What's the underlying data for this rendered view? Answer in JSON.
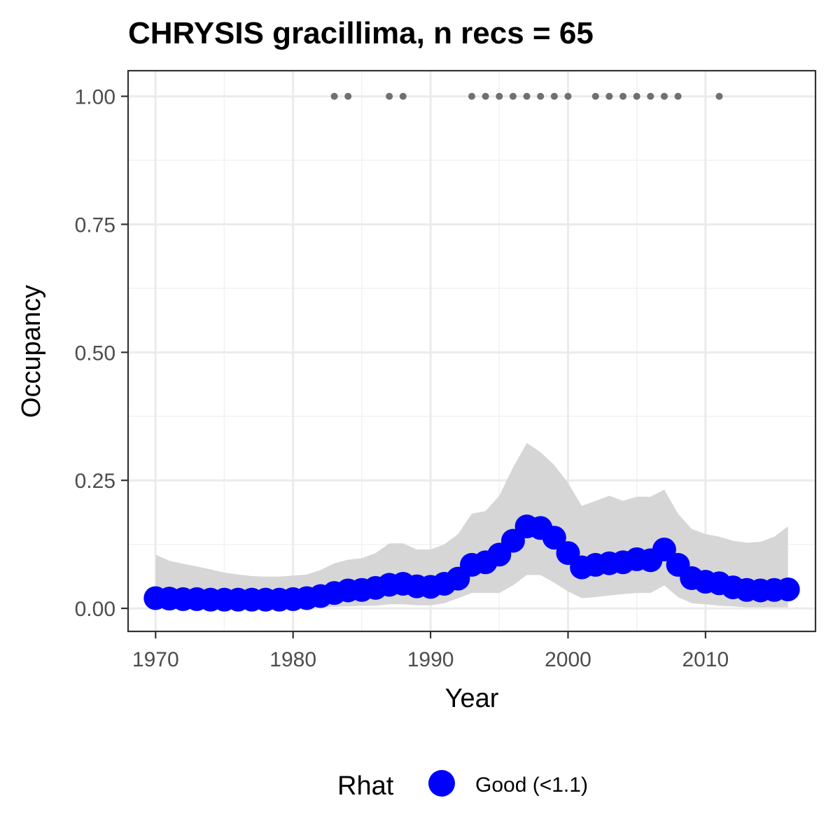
{
  "chart_data": {
    "type": "line",
    "title": "CHRYSIS gracillima, n recs = 65",
    "xlabel": "Year",
    "ylabel": "Occupancy",
    "xlim": [
      1968,
      2018
    ],
    "ylim": [
      -0.045,
      1.05
    ],
    "x_ticks": [
      1970,
      1980,
      1990,
      2000,
      2010
    ],
    "x_tick_labels": [
      "1970",
      "1980",
      "1990",
      "2000",
      "2010"
    ],
    "y_ticks": [
      0,
      0.25,
      0.5,
      0.75,
      1.0
    ],
    "y_tick_labels": [
      "0.00",
      "0.25",
      "0.50",
      "0.75",
      "1.00"
    ],
    "grid": true,
    "legend": {
      "position": "bottom",
      "title": "Rhat",
      "entries": [
        {
          "label": "Good (<1.1)",
          "color": "#0000ff"
        }
      ]
    },
    "colors": {
      "series": "#0000ff",
      "ribbon": "#d6d6d6",
      "records": "#707070"
    },
    "series": [
      {
        "name": "Good (<1.1)",
        "x": [
          1970,
          1971,
          1972,
          1973,
          1974,
          1975,
          1976,
          1977,
          1978,
          1979,
          1980,
          1981,
          1982,
          1983,
          1984,
          1985,
          1986,
          1987,
          1988,
          1989,
          1990,
          1991,
          1992,
          1993,
          1994,
          1995,
          1996,
          1997,
          1998,
          1999,
          2000,
          2001,
          2002,
          2003,
          2004,
          2005,
          2006,
          2007,
          2008,
          2009,
          2010,
          2011,
          2012,
          2013,
          2014,
          2015,
          2016
        ],
        "values": [
          0.02,
          0.019,
          0.018,
          0.018,
          0.017,
          0.017,
          0.017,
          0.017,
          0.017,
          0.017,
          0.018,
          0.02,
          0.024,
          0.03,
          0.035,
          0.036,
          0.04,
          0.046,
          0.048,
          0.043,
          0.042,
          0.048,
          0.058,
          0.085,
          0.09,
          0.105,
          0.132,
          0.16,
          0.157,
          0.138,
          0.108,
          0.08,
          0.085,
          0.088,
          0.09,
          0.096,
          0.094,
          0.115,
          0.085,
          0.059,
          0.052,
          0.049,
          0.041,
          0.036,
          0.035,
          0.036,
          0.037
        ],
        "lower": [
          0.001,
          0.001,
          0.001,
          0.001,
          0.001,
          0.001,
          0.001,
          0.001,
          0.001,
          0.001,
          0.001,
          0.001,
          0.002,
          0.003,
          0.004,
          0.005,
          0.005,
          0.008,
          0.008,
          0.006,
          0.006,
          0.01,
          0.02,
          0.03,
          0.03,
          0.03,
          0.045,
          0.065,
          0.065,
          0.05,
          0.033,
          0.02,
          0.022,
          0.025,
          0.028,
          0.03,
          0.03,
          0.045,
          0.022,
          0.01,
          0.008,
          0.005,
          0.004,
          0.002,
          0.002,
          0.002,
          0.002
        ],
        "upper": [
          0.105,
          0.093,
          0.087,
          0.082,
          0.076,
          0.07,
          0.066,
          0.063,
          0.062,
          0.062,
          0.064,
          0.066,
          0.075,
          0.088,
          0.095,
          0.098,
          0.108,
          0.127,
          0.127,
          0.115,
          0.115,
          0.125,
          0.145,
          0.185,
          0.19,
          0.22,
          0.275,
          0.323,
          0.305,
          0.28,
          0.245,
          0.2,
          0.21,
          0.22,
          0.21,
          0.218,
          0.218,
          0.232,
          0.185,
          0.155,
          0.145,
          0.14,
          0.132,
          0.128,
          0.13,
          0.14,
          0.16
        ]
      }
    ],
    "records": {
      "x": [
        1983,
        1984,
        1987,
        1988,
        1993,
        1994,
        1995,
        1996,
        1997,
        1998,
        1999,
        2000,
        2002,
        2003,
        2004,
        2005,
        2006,
        2007,
        2008,
        2011
      ],
      "y": [
        1,
        1,
        1,
        1,
        1,
        1,
        1,
        1,
        1,
        1,
        1,
        1,
        1,
        1,
        1,
        1,
        1,
        1,
        1,
        1
      ]
    }
  }
}
